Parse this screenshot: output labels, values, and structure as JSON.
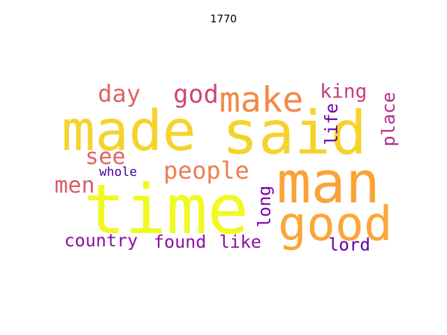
{
  "title": "1770",
  "words": [
    {
      "text": "time",
      "color": "#f0f921"
    },
    {
      "text": "said",
      "color": "#f6d32c"
    },
    {
      "text": "made",
      "color": "#f6d32c"
    },
    {
      "text": "man",
      "color": "#fba238"
    },
    {
      "text": "good",
      "color": "#fca636"
    },
    {
      "text": "make",
      "color": "#f48849"
    },
    {
      "text": "people",
      "color": "#ee7c53"
    },
    {
      "text": "day",
      "color": "#e16462"
    },
    {
      "text": "see",
      "color": "#e16462"
    },
    {
      "text": "god",
      "color": "#cc4778"
    },
    {
      "text": "king",
      "color": "#c5407e"
    },
    {
      "text": "men",
      "color": "#db5c68"
    },
    {
      "text": "place",
      "color": "#b52f8c"
    },
    {
      "text": "life",
      "color": "#6a00a8"
    },
    {
      "text": "long",
      "color": "#7e03a8"
    },
    {
      "text": "country",
      "color": "#8f0da4"
    },
    {
      "text": "found",
      "color": "#8f0da4"
    },
    {
      "text": "like",
      "color": "#8f0da4"
    },
    {
      "text": "lord",
      "color": "#6a00a8"
    },
    {
      "text": "whole",
      "color": "#3e049c"
    }
  ]
}
